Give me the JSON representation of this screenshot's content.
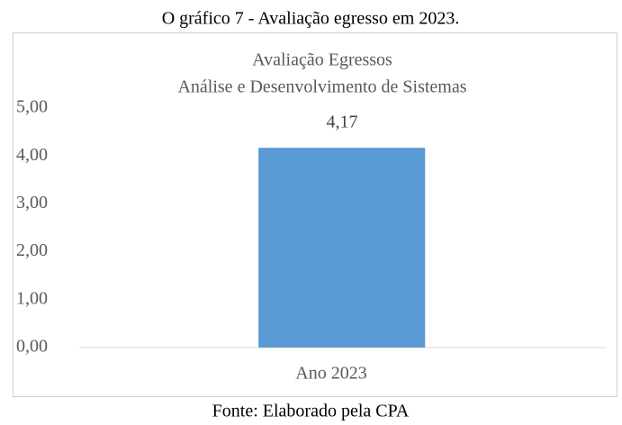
{
  "caption": "O gráfico 7 - Avaliação egresso em 2023.",
  "source": "Fonte: Elaborado pela CPA",
  "chart_data": {
    "type": "bar",
    "title": "Avaliação Egressos",
    "subtitle": "Análise e Desenvolvimento de Sistemas",
    "categories": [
      "Ano 2023"
    ],
    "values": [
      4.17
    ],
    "value_labels": [
      "4,17"
    ],
    "color": "#5b9bd5",
    "ylim": [
      0,
      5
    ],
    "yticks": [
      {
        "value": 0,
        "label": "0,00"
      },
      {
        "value": 1,
        "label": "1,00"
      },
      {
        "value": 2,
        "label": "2,00"
      },
      {
        "value": 3,
        "label": "3,00"
      },
      {
        "value": 4,
        "label": "4,00"
      },
      {
        "value": 5,
        "label": "5,00"
      }
    ],
    "grid": false
  }
}
